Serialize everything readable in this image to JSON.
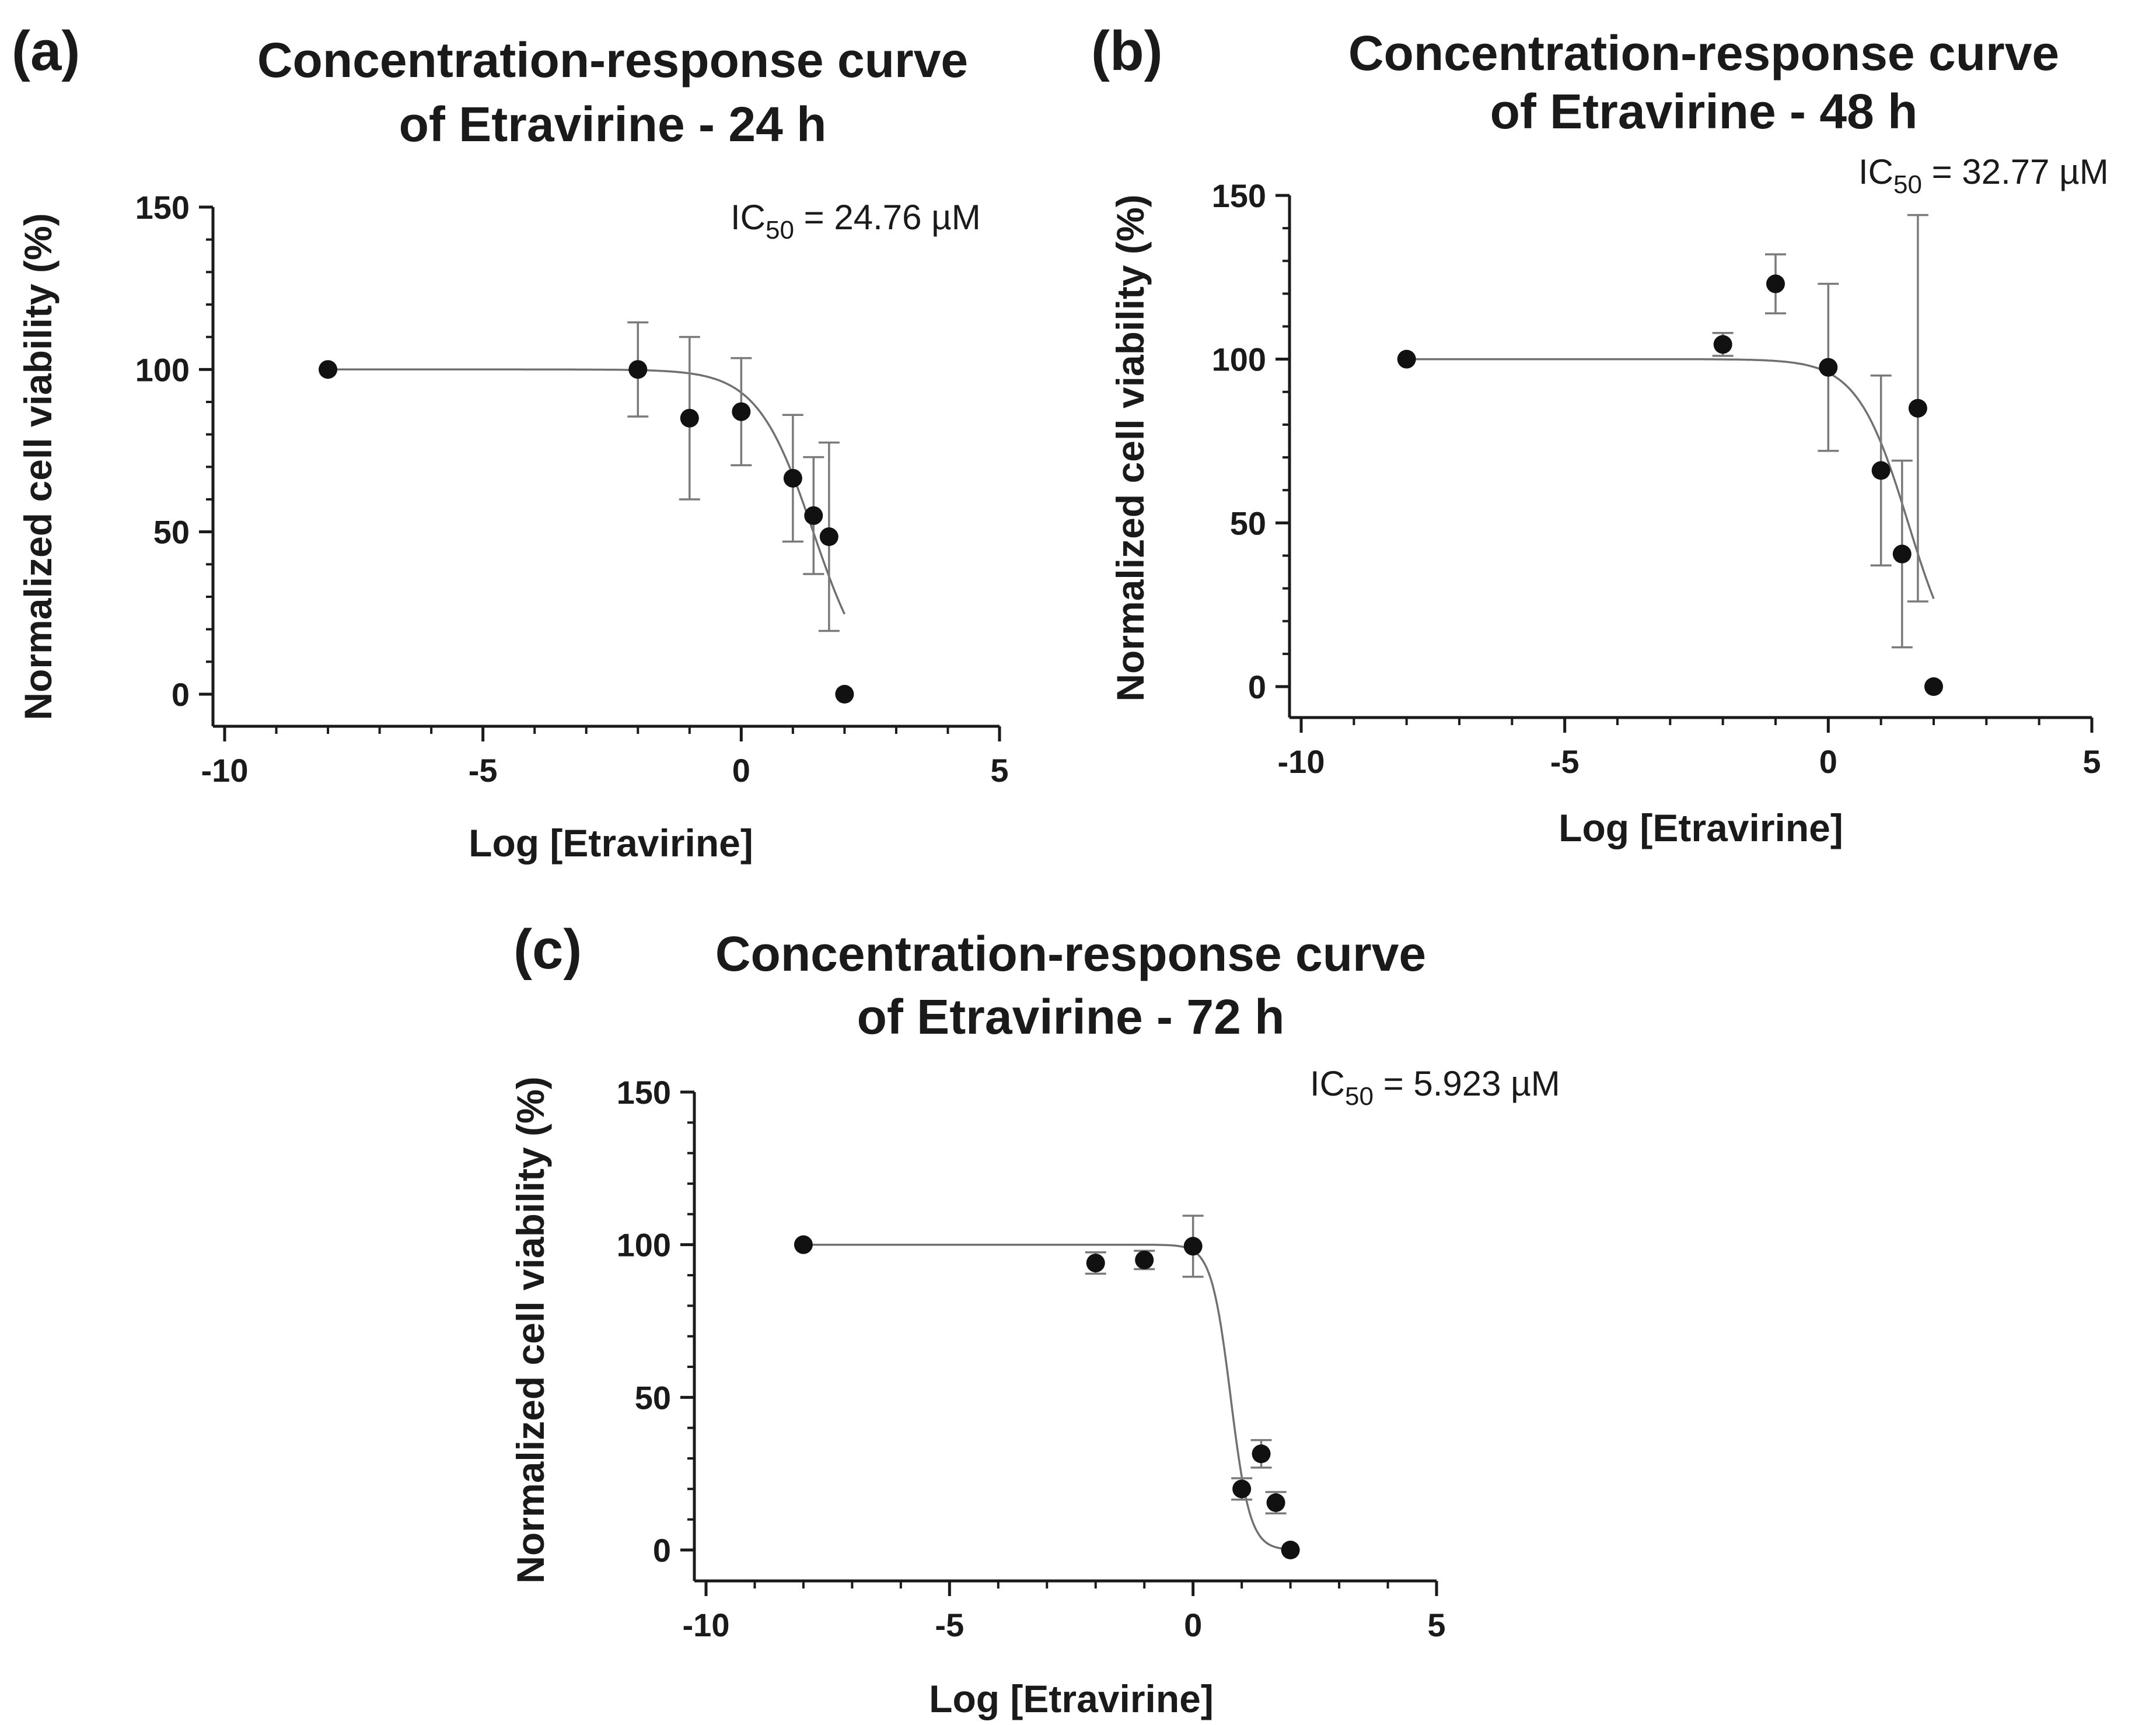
{
  "chart_data": [
    {
      "type": "scatter",
      "panel_label": "(a)",
      "title": [
        "Concentration-response curve",
        "of Etravirine - 24 h"
      ],
      "xlabel": "Log [Etravirine]",
      "ylabel": "Normalized cell viability (%)",
      "xlim": [
        -10,
        5
      ],
      "ylim": [
        0,
        150
      ],
      "xticks": [
        "-10",
        "-5",
        "0",
        "5"
      ],
      "yticks": [
        "0",
        "50",
        "100",
        "150"
      ],
      "ic50_annotation": {
        "prefix": "IC",
        "subscript": "50",
        "suffix": " = 24.76 µM"
      },
      "fit": {
        "model": "four-parameter logistic",
        "top": 100,
        "bottom": 0,
        "log_ic50": 1.394,
        "hill_slope": -0.8,
        "x_range": [
          -8,
          2
        ]
      },
      "series": [
        {
          "x": [
            -8,
            -2,
            -1,
            0,
            1,
            1.4,
            1.7,
            2
          ],
          "y": [
            100,
            100,
            85,
            87,
            66.5,
            55,
            48.5,
            0
          ],
          "error": [
            0,
            14.5,
            25,
            16.5,
            19.5,
            18,
            29,
            0
          ]
        }
      ]
    },
    {
      "type": "scatter",
      "panel_label": "(b)",
      "title": [
        "Concentration-response curve",
        "of Etravirine - 48 h"
      ],
      "xlabel": "Log [Etravirine]",
      "ylabel": "Normalized cell viability (%)",
      "xlim": [
        -10,
        5
      ],
      "ylim": [
        0,
        150
      ],
      "xticks": [
        "-10",
        "-5",
        "0",
        "5"
      ],
      "yticks": [
        "0",
        "50",
        "100",
        "150"
      ],
      "ic50_annotation": {
        "prefix": "IC",
        "subscript": "50",
        "suffix": " = 32.77 µM"
      },
      "fit": {
        "model": "four-parameter logistic",
        "top": 100,
        "bottom": 0,
        "log_ic50": 1.516,
        "hill_slope": -0.9,
        "x_range": [
          -8,
          2
        ]
      },
      "series": [
        {
          "x": [
            -8,
            -2,
            -1,
            0,
            1,
            1.4,
            1.7,
            2
          ],
          "y": [
            100,
            104.5,
            123,
            97.5,
            66,
            40.5,
            85,
            0
          ],
          "error": [
            0,
            3.5,
            9,
            25.5,
            29,
            28.5,
            59,
            0
          ]
        }
      ]
    },
    {
      "type": "scatter",
      "panel_label": "(c)",
      "title": [
        "Concentration-response curve",
        "of Etravirine - 72 h"
      ],
      "xlabel": "Log [Etravirine]",
      "ylabel": "Normalized cell viability (%)",
      "xlim": [
        -10,
        5
      ],
      "ylim": [
        0,
        150
      ],
      "xticks": [
        "-10",
        "-5",
        "0",
        "5"
      ],
      "yticks": [
        "0",
        "50",
        "100",
        "150"
      ],
      "ic50_annotation": {
        "prefix": "IC",
        "subscript": "50",
        "suffix": " = 5.923 µM"
      },
      "fit": {
        "model": "four-parameter logistic",
        "top": 100,
        "bottom": 0,
        "log_ic50": 0.7725,
        "hill_slope": -2.2,
        "x_range": [
          -8,
          2
        ]
      },
      "series": [
        {
          "x": [
            -8,
            -2,
            -1,
            0,
            1,
            1.4,
            1.7,
            2
          ],
          "y": [
            100,
            94,
            95,
            99.5,
            20,
            31.5,
            15.5,
            0
          ],
          "error": [
            0,
            3.5,
            3,
            10,
            3.5,
            4.5,
            3.5,
            0
          ]
        }
      ]
    }
  ]
}
